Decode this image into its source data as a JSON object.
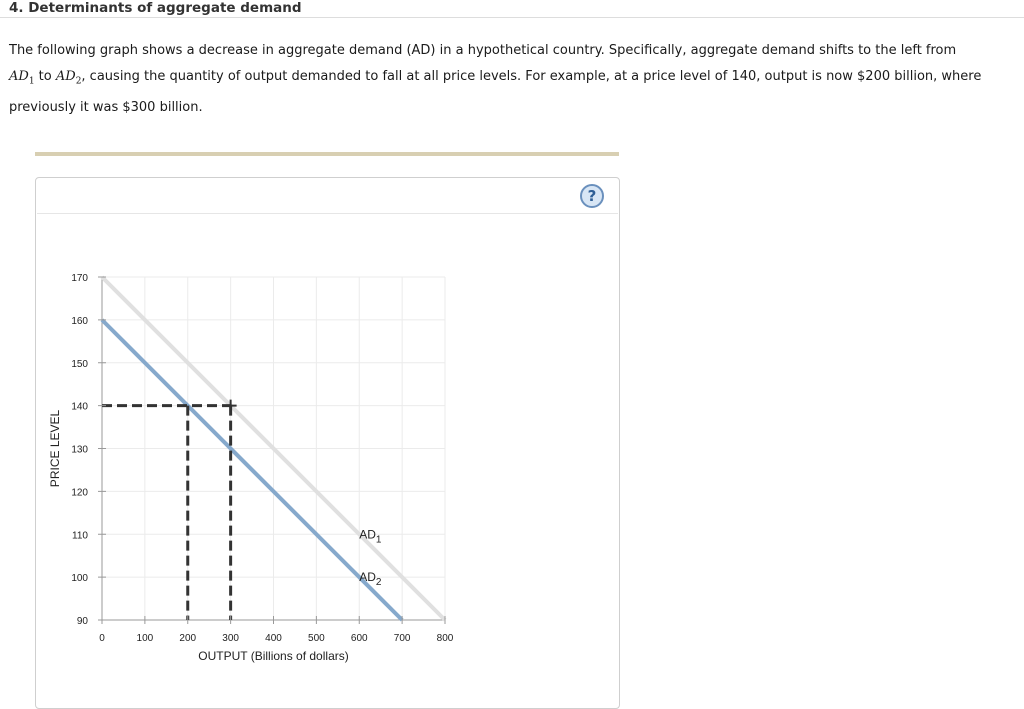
{
  "page": {
    "section_title": "4. Determinants of aggregate demand",
    "intro_part1": "The following graph shows a decrease in aggregate demand (AD) in a hypothetical country. Specifically, aggregate demand shifts to the left from",
    "intro_ad1_base": "AD",
    "intro_ad1_sub": "1",
    "intro_to": " to ",
    "intro_ad2_base": "AD",
    "intro_ad2_sub": "2",
    "intro_part2": ", causing the quantity of output demanded to fall at all price levels. For example, at a price level of 140, output is now $200 billion, where previously it was $300 billion.",
    "help_label": "?"
  },
  "colors": {
    "ad1": "#e0e0e0",
    "ad2": "#86a9cc",
    "guide": "#333333",
    "grid": "#ebebeb",
    "axis": "#999999"
  },
  "chart_data": {
    "type": "line",
    "xlabel": "OUTPUT (Billions of dollars)",
    "ylabel": "PRICE LEVEL",
    "xlim": [
      0,
      800
    ],
    "ylim": [
      90,
      170
    ],
    "x_ticks": [
      0,
      100,
      200,
      300,
      400,
      500,
      600,
      700,
      800
    ],
    "y_ticks": [
      90,
      100,
      110,
      120,
      130,
      140,
      150,
      160,
      170
    ],
    "grid": true,
    "series": [
      {
        "name": "AD1",
        "label_base": "AD",
        "label_sub": "1",
        "points": [
          [
            0,
            170
          ],
          [
            800,
            90
          ]
        ],
        "label_at": [
          600,
          110
        ]
      },
      {
        "name": "AD2",
        "label_base": "AD",
        "label_sub": "2",
        "points": [
          [
            0,
            160
          ],
          [
            700,
            90
          ]
        ],
        "label_at": [
          600,
          100
        ]
      }
    ],
    "guides": [
      {
        "points": [
          [
            0,
            140
          ],
          [
            300,
            140
          ]
        ]
      },
      {
        "points": [
          [
            200,
            140
          ],
          [
            200,
            90
          ]
        ]
      },
      {
        "points": [
          [
            300,
            140
          ],
          [
            300,
            90
          ]
        ]
      }
    ]
  }
}
